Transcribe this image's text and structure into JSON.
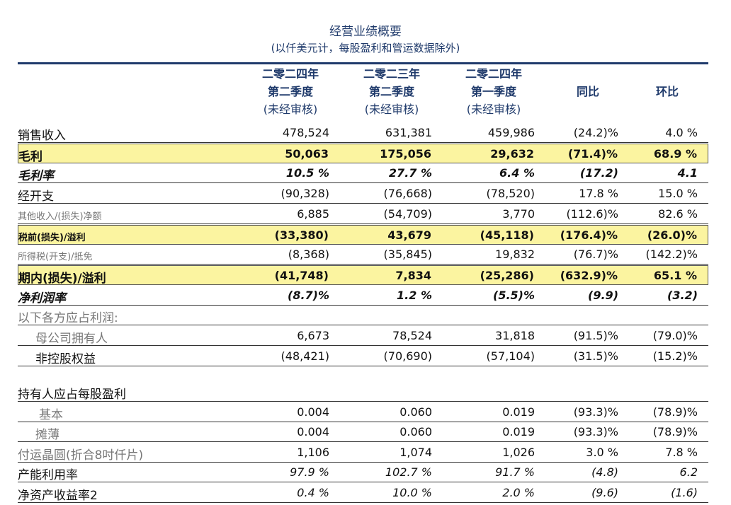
{
  "header": {
    "title": "经营业绩概要",
    "subtitle": "(以仟美元计，每股盈利和管运数据除外)"
  },
  "table": {
    "columns": [
      [
        "二零二四年",
        "第二季度",
        "(未经审核)"
      ],
      [
        "二零二三年",
        "第二季度",
        "(未经审核)"
      ],
      [
        "二零二四年",
        "第一季度",
        "(未经审核)"
      ],
      [
        "同比"
      ],
      [
        "环比"
      ]
    ],
    "rows": [
      {
        "label": "销售收入",
        "values": [
          "478,524",
          "631,381",
          "459,986",
          "(24.2)%",
          "4.0 %"
        ]
      },
      {
        "label": "毛利",
        "values": [
          "50,063",
          "175,056",
          "29,632",
          "(71.4)%",
          "68.9 %"
        ]
      },
      {
        "label": "毛利率",
        "values": [
          "10.5 %",
          "27.7 %",
          "6.4 %",
          "(17.2)",
          "4.1"
        ]
      },
      {
        "label": "经开支",
        "values": [
          "(90,328)",
          "(76,668)",
          "(78,520)",
          "17.8 %",
          "15.0 %"
        ]
      },
      {
        "label": "其他收入/(损失)净额",
        "values": [
          "6,885",
          "(54,709)",
          "3,770",
          "(112.6)%",
          "82.6 %"
        ]
      },
      {
        "label": "税前(损失)/溢利",
        "values": [
          "(33,380)",
          "43,679",
          "(45,118)",
          "(176.4)%",
          "(26.0)%"
        ]
      },
      {
        "label": "所得税(开支)/抵免",
        "values": [
          "(8,368)",
          "(35,845)",
          "19,832",
          "(76.7)%",
          "(142.2)%"
        ]
      },
      {
        "label": "期内(损失)/溢利",
        "values": [
          "(41,748)",
          "7,834",
          "(25,286)",
          "(632.9)%",
          "65.1 %"
        ]
      },
      {
        "label": "净利润率",
        "values": [
          "(8.7)%",
          "1.2 %",
          "(5.5)%",
          "(9.9)",
          "(3.2)"
        ]
      },
      {
        "label": "以下各方应占利润:"
      },
      {
        "label": "母公司拥有人",
        "values": [
          "6,673",
          "78,524",
          "31,818",
          "(91.5)%",
          "(79.0)%"
        ]
      },
      {
        "label": "非控股权益",
        "values": [
          "(48,421)",
          "(70,690)",
          "(57,104)",
          "(31.5)%",
          "(15.2)%"
        ]
      },
      {
        "label": "持有人应占每股盈利"
      },
      {
        "label": "基本",
        "values": [
          "0.004",
          "0.060",
          "0.019",
          "(93.3)%",
          "(78.9)%"
        ]
      },
      {
        "label": "摊薄",
        "values": [
          "0.004",
          "0.060",
          "0.019",
          "(93.3)%",
          "(78.9)%"
        ]
      },
      {
        "label": "付运晶圆(折合8吋仟片)",
        "values": [
          "1,106",
          "1,074",
          "1,026",
          "3.0 %",
          "7.8 %"
        ]
      },
      {
        "label": "产能利用率",
        "values": [
          "97.9 %",
          "102.7 %",
          "91.7 %",
          "(4.8)",
          "6.2"
        ]
      },
      {
        "label": "净资产收益率2",
        "values": [
          "0.4 %",
          "10.0 %",
          "2.0 %",
          "(9.6)",
          "(1.6)"
        ]
      }
    ]
  }
}
